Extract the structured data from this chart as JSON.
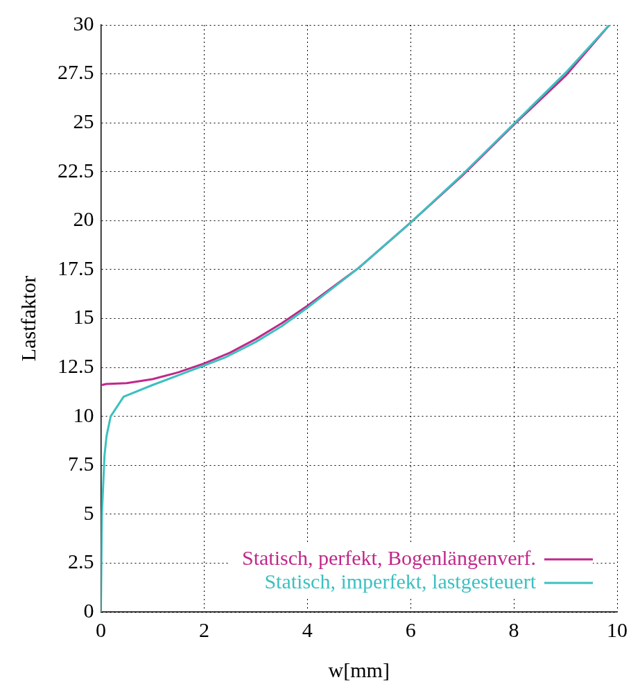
{
  "chart_data": {
    "type": "line",
    "xlabel": "w[mm]",
    "ylabel": "Lastfaktor",
    "xlim": [
      0,
      10
    ],
    "ylim": [
      0,
      30
    ],
    "xticks": [
      0,
      2,
      4,
      6,
      8,
      10
    ],
    "yticks": [
      0,
      2.5,
      5,
      7.5,
      10,
      12.5,
      15,
      17.5,
      20,
      22.5,
      25,
      27.5,
      30
    ],
    "grid": true,
    "legend": "bottom right",
    "line_style": "solid",
    "marker": "none",
    "series": [
      {
        "name": "Statisch, perfekt, Bogenlängenverf.",
        "color": "#c0288a",
        "x": [
          0.02,
          0.1,
          0.5,
          1,
          1.5,
          2,
          2.5,
          3,
          3.5,
          4,
          5,
          6,
          7,
          8,
          9,
          9.85
        ],
        "values": [
          11.6,
          11.65,
          11.7,
          11.9,
          12.25,
          12.7,
          13.25,
          13.95,
          14.75,
          15.65,
          17.6,
          19.9,
          22.3,
          24.9,
          27.4,
          30
        ]
      },
      {
        "name": "Statisch, imperfekt, lastgesteuert",
        "color": "#3cc0c0",
        "x": [
          0,
          0.02,
          0.07,
          0.11,
          0.19,
          0.44,
          1,
          1.5,
          2,
          2.4,
          3,
          3.5,
          4,
          5,
          6,
          7,
          8,
          9,
          9.85
        ],
        "values": [
          0,
          5,
          8,
          9,
          10,
          11,
          11.6,
          12.1,
          12.6,
          13,
          13.8,
          14.6,
          15.55,
          17.6,
          19.9,
          22.35,
          24.95,
          27.55,
          30
        ]
      }
    ]
  }
}
